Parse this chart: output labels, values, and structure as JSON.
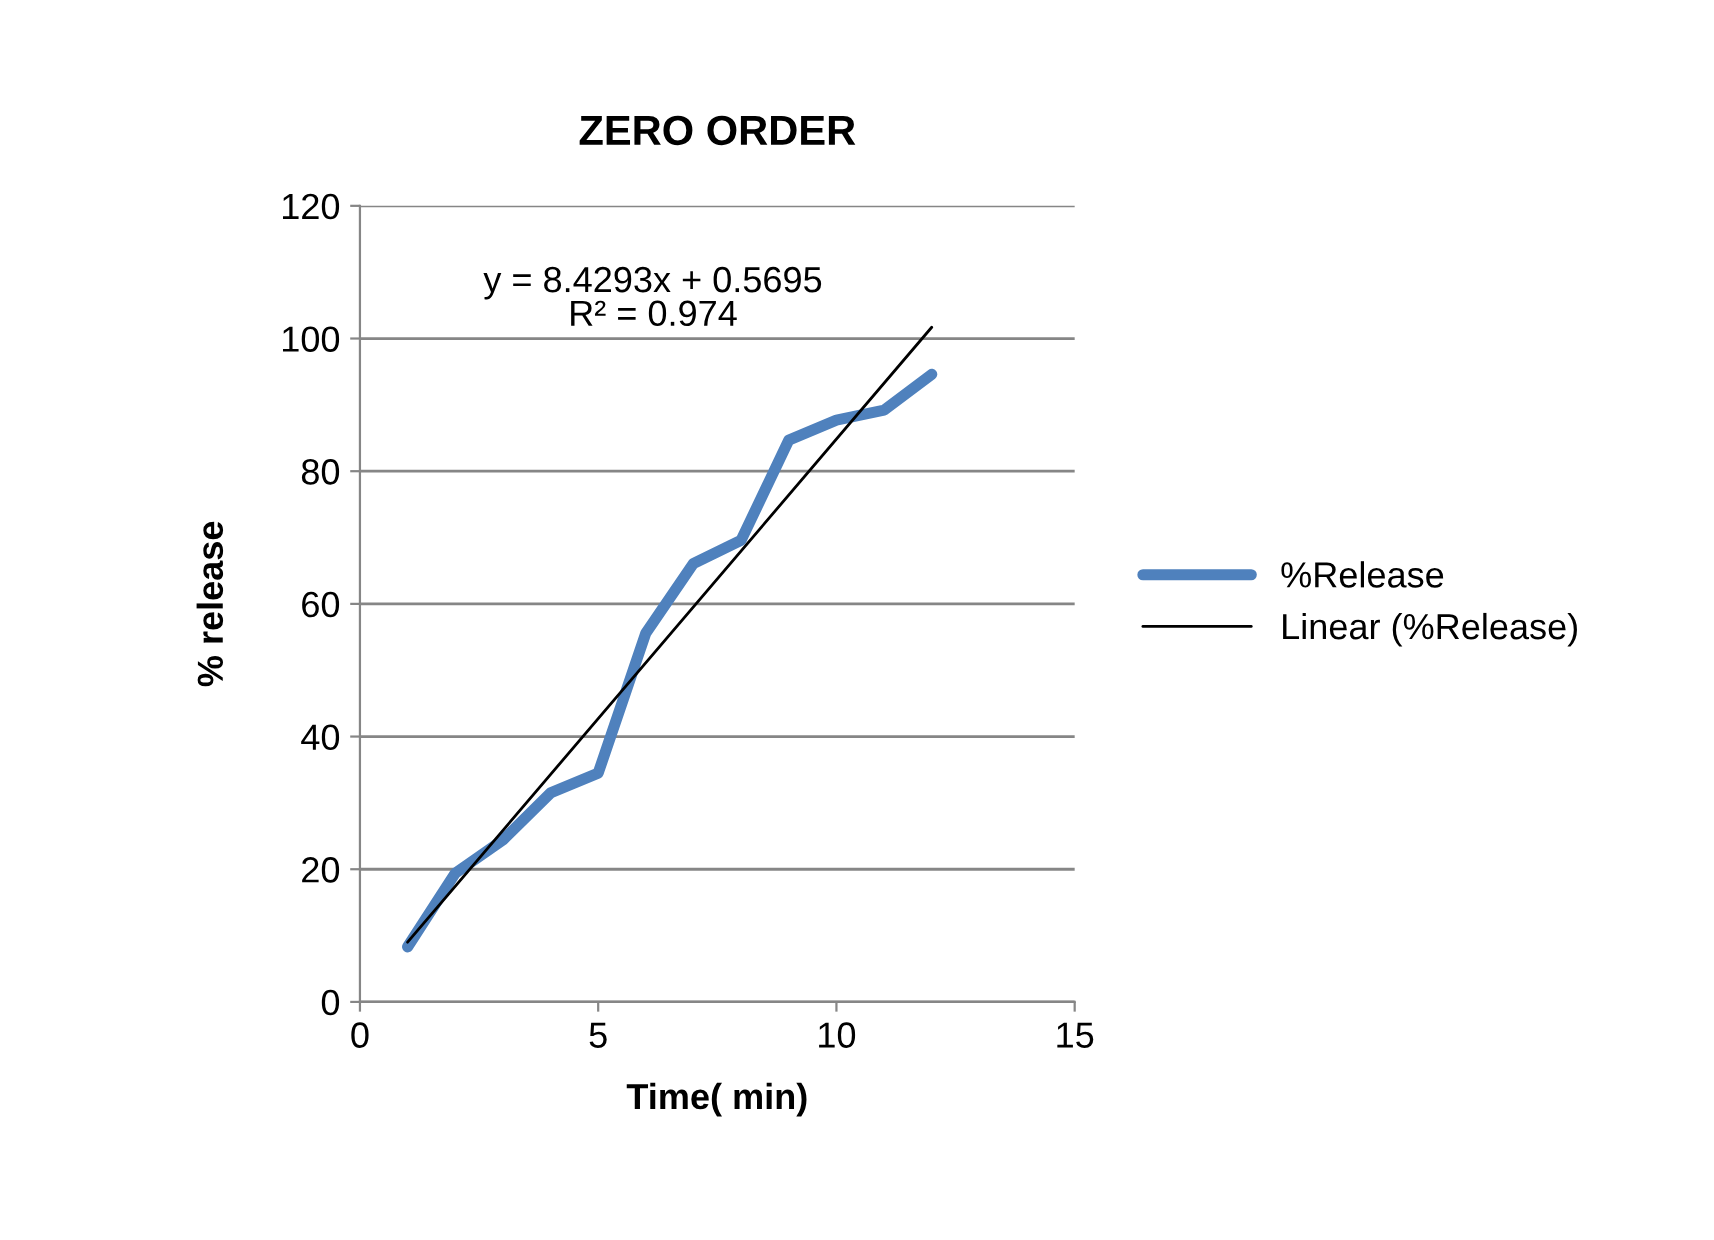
{
  "chart_data": {
    "type": "line",
    "title": "ZERO ORDER",
    "xlabel": "Time( min)",
    "ylabel": "% release",
    "xlim": [
      0,
      15
    ],
    "xticks": [
      0,
      5,
      10,
      15
    ],
    "ylim": [
      0,
      120
    ],
    "yticks": [
      0,
      20,
      40,
      60,
      80,
      100,
      120
    ],
    "grid": "y",
    "legend": "right",
    "marker": "none",
    "series": [
      {
        "name": "%Release",
        "color": "#4f81bd",
        "x": [
          1,
          2,
          3,
          4,
          5,
          6,
          7,
          8,
          9,
          10,
          11,
          12
        ],
        "values": [
          8.3,
          19.4,
          24.4,
          31.5,
          34.5,
          55.6,
          66.1,
          69.6,
          84.7,
          87.7,
          89.2,
          94.6
        ]
      },
      {
        "name": "Linear (%Release)",
        "color": "#000000",
        "x": [
          1,
          12
        ],
        "values": [
          9.0,
          101.7
        ]
      }
    ],
    "annotations": [
      "y = 8.4293x + 0.5695\nR² = 0.974"
    ]
  }
}
